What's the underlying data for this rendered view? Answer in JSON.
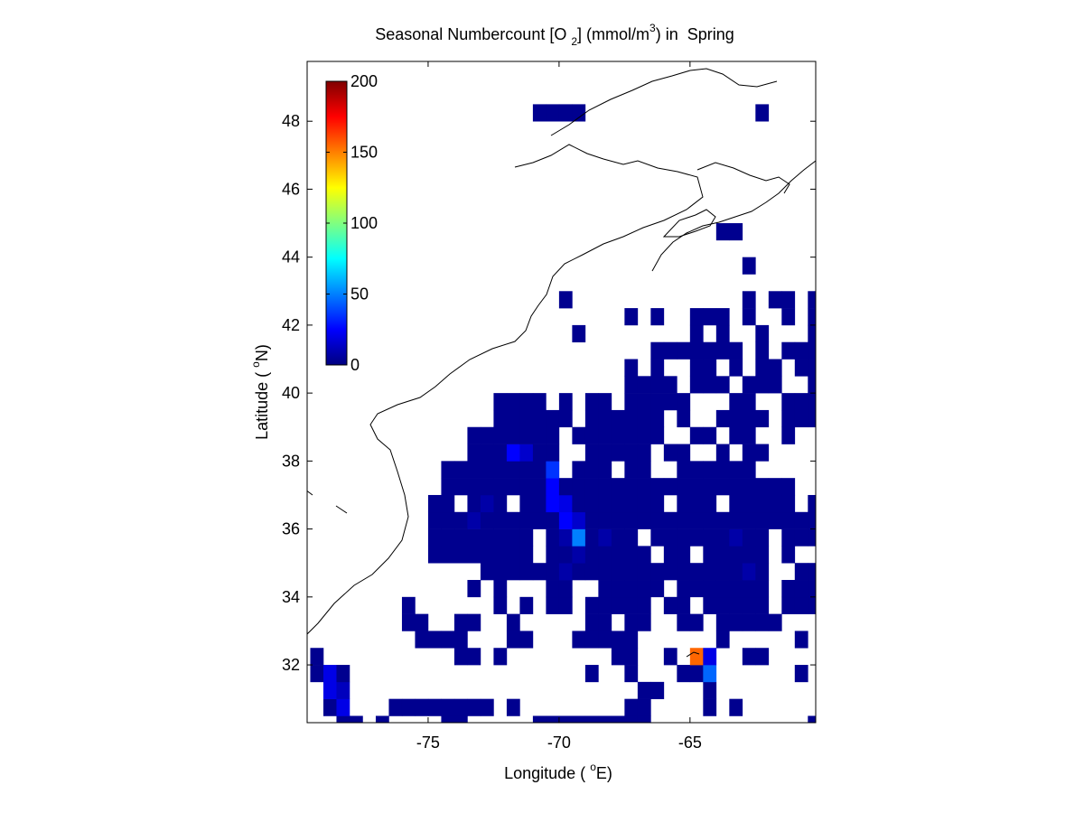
{
  "chart_data": {
    "type": "heatmap",
    "title_parts": [
      "Seasonal Numbercount [O ",
      "2",
      "] (mmol/m",
      "3",
      ") in  Spring"
    ],
    "xlabel_parts": [
      "Longitude ( ",
      "o",
      "E)"
    ],
    "ylabel_parts": [
      "Latitude ( ",
      "o",
      "N)"
    ],
    "xlim": [
      -79.62,
      -60.2
    ],
    "ylim": [
      30.3,
      49.76
    ],
    "xticks": [
      -75,
      -70,
      -65
    ],
    "yticks": [
      32,
      34,
      36,
      38,
      40,
      42,
      44,
      46,
      48
    ],
    "clim": [
      0,
      200
    ],
    "cticks": [
      0,
      50,
      100,
      150,
      200
    ],
    "colormap": "jet",
    "cell_size": 0.5,
    "rows": [
      {
        "lat": 30.25,
        "lon": [
          -78.25,
          -77.75,
          -76.75,
          -74.25,
          -73.75,
          -70.75,
          -70.25,
          -69.75,
          -69.25,
          -68.75,
          -68.25,
          -67.75,
          -67.25,
          -66.75,
          -60.25
        ],
        "values": [
          3,
          3,
          3,
          3,
          3,
          3,
          3,
          3,
          3,
          3,
          3,
          3,
          3,
          3,
          3
        ]
      },
      {
        "lat": 30.75,
        "lon": [
          -78.75,
          -78.25,
          -76.25,
          -75.75,
          -75.25,
          -74.75,
          -74.25,
          -73.75,
          -73.25,
          -72.75,
          -71.75,
          -67.25,
          -66.75,
          -64.25,
          -63.25
        ],
        "values": [
          3,
          20,
          3,
          3,
          3,
          3,
          3,
          3,
          3,
          3,
          3,
          3,
          3,
          3,
          3
        ]
      },
      {
        "lat": 31.25,
        "lon": [
          -78.75,
          -78.25,
          -66.75,
          -66.25,
          -64.25
        ],
        "values": [
          20,
          12,
          3,
          3,
          3
        ]
      },
      {
        "lat": 31.75,
        "lon": [
          -79.25,
          -78.75,
          -78.25,
          -68.75,
          -67.25,
          -65.25,
          -64.75,
          -64.25,
          -60.75
        ],
        "values": [
          3,
          20,
          3,
          3,
          3,
          3,
          3,
          45,
          3
        ]
      },
      {
        "lat": 32.25,
        "lon": [
          -79.25,
          -73.75,
          -73.25,
          -72.25,
          -67.75,
          -67.25,
          -65.75,
          -64.75,
          -64.25,
          -62.75,
          -62.25
        ],
        "values": [
          3,
          3,
          3,
          3,
          3,
          3,
          3,
          155,
          20,
          3,
          3
        ]
      },
      {
        "lat": 32.75,
        "lon": [
          -75.25,
          -74.75,
          -74.25,
          -73.75,
          -71.75,
          -71.25,
          -69.25,
          -68.75,
          -68.25,
          -67.75,
          -67.25,
          -63.75,
          -60.75
        ],
        "values": [
          3,
          3,
          3,
          3,
          3,
          3,
          3,
          3,
          3,
          3,
          3,
          3,
          3
        ]
      },
      {
        "lat": 33.25,
        "lon": [
          -75.75,
          -75.25,
          -73.75,
          -73.25,
          -71.75,
          -68.75,
          -68.25,
          -67.25,
          -66.75,
          -65.25,
          -64.75,
          -63.75,
          -63.25,
          -62.75,
          -62.25,
          -61.75
        ],
        "values": [
          3,
          3,
          3,
          3,
          3,
          3,
          3,
          3,
          3,
          3,
          3,
          3,
          3,
          3,
          3,
          3
        ]
      },
      {
        "lat": 33.75,
        "lon": [
          -75.75,
          -72.25,
          -71.25,
          -70.25,
          -69.75,
          -68.75,
          -68.25,
          -67.75,
          -67.25,
          -66.75,
          -65.75,
          -65.25,
          -64.25,
          -63.75,
          -63.25,
          -62.75,
          -62.25,
          -61.25,
          -60.75,
          -60.25
        ],
        "values": [
          3,
          3,
          3,
          3,
          3,
          3,
          3,
          3,
          3,
          3,
          3,
          3,
          3,
          3,
          3,
          3,
          3,
          3,
          3,
          3
        ]
      },
      {
        "lat": 34.25,
        "lon": [
          -73.25,
          -72.25,
          -70.25,
          -69.75,
          -68.25,
          -67.75,
          -67.25,
          -66.75,
          -66.25,
          -65.25,
          -64.75,
          -64.25,
          -63.75,
          -63.25,
          -62.75,
          -62.25,
          -61.25,
          -60.75,
          -60.25
        ],
        "values": [
          3,
          3,
          3,
          3,
          3,
          3,
          3,
          3,
          3,
          3,
          3,
          3,
          3,
          3,
          3,
          3,
          3,
          3,
          3
        ]
      },
      {
        "lat": 34.75,
        "lon": [
          -72.75,
          -72.25,
          -71.75,
          -71.25,
          -70.75,
          -70.25,
          -69.75,
          -69.25,
          -68.75,
          -68.25,
          -67.75,
          -67.25,
          -66.75,
          -66.25,
          -65.75,
          -65.25,
          -64.75,
          -64.25,
          -63.75,
          -63.25,
          -62.75,
          -62.25,
          -60.75,
          -60.25
        ],
        "values": [
          3,
          3,
          3,
          3,
          3,
          3,
          8,
          3,
          3,
          3,
          3,
          3,
          3,
          3,
          3,
          3,
          3,
          3,
          3,
          3,
          8,
          3,
          3,
          3
        ]
      },
      {
        "lat": 35.25,
        "lon": [
          -74.75,
          -74.25,
          -73.75,
          -73.25,
          -72.75,
          -72.25,
          -71.75,
          -71.25,
          -70.25,
          -69.75,
          -69.25,
          -68.75,
          -68.25,
          -67.75,
          -67.25,
          -66.75,
          -65.75,
          -65.25,
          -64.25,
          -63.75,
          -63.25,
          -62.75,
          -62.25,
          -61.25
        ],
        "values": [
          3,
          3,
          3,
          3,
          3,
          3,
          3,
          3,
          3,
          3,
          8,
          3,
          3,
          3,
          3,
          3,
          3,
          3,
          3,
          3,
          3,
          3,
          3,
          3
        ]
      },
      {
        "lat": 35.75,
        "lon": [
          -74.75,
          -74.25,
          -73.75,
          -73.25,
          -72.75,
          -72.25,
          -71.75,
          -71.25,
          -70.25,
          -69.75,
          -69.25,
          -68.75,
          -68.25,
          -67.75,
          -67.25,
          -66.25,
          -65.75,
          -65.25,
          -64.75,
          -64.25,
          -63.75,
          -63.25,
          -62.75,
          -62.25,
          -61.25,
          -60.75,
          -60.25
        ],
        "values": [
          3,
          3,
          3,
          3,
          3,
          3,
          3,
          3,
          3,
          8,
          50,
          3,
          8,
          3,
          3,
          3,
          3,
          3,
          3,
          3,
          3,
          8,
          3,
          3,
          3,
          3,
          3
        ]
      },
      {
        "lat": 36.25,
        "lon": [
          -74.75,
          -74.25,
          -73.75,
          -73.25,
          -72.75,
          -72.25,
          -71.75,
          -71.25,
          -70.75,
          -70.25,
          -69.75,
          -69.25,
          -68.75,
          -68.25,
          -67.75,
          -67.25,
          -66.75,
          -66.25,
          -65.75,
          -65.25,
          -64.75,
          -64.25,
          -63.75,
          -63.25,
          -62.75,
          -62.25,
          -61.75,
          -61.25,
          -60.75,
          -60.25
        ],
        "values": [
          3,
          3,
          3,
          8,
          3,
          3,
          3,
          3,
          3,
          3,
          25,
          15,
          3,
          3,
          3,
          3,
          3,
          3,
          3,
          3,
          3,
          3,
          3,
          3,
          3,
          3,
          3,
          3,
          3,
          3
        ]
      },
      {
        "lat": 36.75,
        "lon": [
          -74.75,
          -74.25,
          -73.25,
          -72.75,
          -72.25,
          -71.25,
          -70.75,
          -70.25,
          -69.75,
          -69.25,
          -68.75,
          -68.25,
          -67.75,
          -67.25,
          -66.75,
          -66.25,
          -65.25,
          -64.75,
          -64.25,
          -63.25,
          -62.75,
          -62.25,
          -61.75,
          -61.25,
          -60.25
        ],
        "values": [
          3,
          3,
          3,
          8,
          3,
          3,
          3,
          25,
          20,
          3,
          3,
          3,
          3,
          3,
          3,
          3,
          3,
          3,
          3,
          3,
          3,
          3,
          3,
          3,
          3
        ]
      },
      {
        "lat": 37.25,
        "lon": [
          -74.25,
          -73.75,
          -73.25,
          -72.75,
          -72.25,
          -71.75,
          -71.25,
          -70.75,
          -70.25,
          -69.75,
          -69.25,
          -68.75,
          -68.25,
          -67.75,
          -67.25,
          -66.75,
          -66.25,
          -65.75,
          -65.25,
          -64.75,
          -64.25,
          -63.75,
          -63.25,
          -62.75,
          -62.25,
          -61.75,
          -61.25
        ],
        "values": [
          3,
          3,
          3,
          3,
          3,
          3,
          3,
          3,
          25,
          3,
          3,
          3,
          3,
          3,
          3,
          3,
          3,
          3,
          3,
          3,
          3,
          3,
          3,
          3,
          3,
          3,
          3
        ]
      },
      {
        "lat": 37.75,
        "lon": [
          -74.25,
          -73.75,
          -73.25,
          -72.75,
          -72.25,
          -71.75,
          -71.25,
          -70.75,
          -70.25,
          -69.25,
          -68.75,
          -68.25,
          -67.25,
          -66.75,
          -65.25,
          -64.75,
          -64.25,
          -63.75,
          -63.25,
          -62.75
        ],
        "values": [
          3,
          3,
          3,
          3,
          3,
          3,
          3,
          3,
          35,
          3,
          3,
          3,
          3,
          3,
          3,
          3,
          3,
          3,
          3,
          3
        ]
      },
      {
        "lat": 38.25,
        "lon": [
          -73.25,
          -72.75,
          -72.25,
          -71.75,
          -71.25,
          -70.75,
          -70.25,
          -68.75,
          -68.25,
          -67.75,
          -67.25,
          -66.75,
          -65.75,
          -65.25,
          -63.75,
          -62.75,
          -62.25
        ],
        "values": [
          3,
          3,
          3,
          25,
          15,
          3,
          3,
          3,
          3,
          3,
          3,
          3,
          3,
          3,
          3,
          3,
          3
        ]
      },
      {
        "lat": 38.75,
        "lon": [
          -73.25,
          -72.75,
          -72.25,
          -71.75,
          -71.25,
          -70.75,
          -70.25,
          -69.25,
          -68.75,
          -68.25,
          -67.75,
          -67.25,
          -66.75,
          -66.25,
          -64.75,
          -64.25,
          -63.25,
          -62.75,
          -61.25
        ],
        "values": [
          3,
          3,
          3,
          3,
          3,
          3,
          3,
          3,
          3,
          3,
          3,
          3,
          3,
          3,
          3,
          3,
          3,
          3,
          3
        ]
      },
      {
        "lat": 39.25,
        "lon": [
          -72.25,
          -71.75,
          -71.25,
          -70.75,
          -70.25,
          -69.75,
          -68.75,
          -68.25,
          -67.75,
          -67.25,
          -66.75,
          -66.25,
          -65.25,
          -63.75,
          -63.25,
          -62.75,
          -62.25,
          -61.25,
          -60.75,
          -60.25
        ],
        "values": [
          3,
          3,
          3,
          3,
          3,
          3,
          3,
          3,
          3,
          3,
          3,
          3,
          3,
          3,
          3,
          3,
          3,
          3,
          3,
          3
        ]
      },
      {
        "lat": 39.75,
        "lon": [
          -72.25,
          -71.75,
          -71.25,
          -70.75,
          -69.75,
          -68.75,
          -68.25,
          -67.25,
          -66.75,
          -66.25,
          -65.75,
          -65.25,
          -63.25,
          -62.75,
          -61.25,
          -60.75,
          -60.25
        ],
        "values": [
          3,
          3,
          3,
          3,
          3,
          3,
          3,
          3,
          3,
          3,
          3,
          3,
          3,
          3,
          3,
          3,
          3
        ]
      },
      {
        "lat": 40.25,
        "lon": [
          -67.25,
          -66.75,
          -66.25,
          -65.75,
          -64.75,
          -64.25,
          -63.75,
          -62.75,
          -62.25,
          -61.75,
          -60.25
        ],
        "values": [
          3,
          3,
          3,
          3,
          3,
          3,
          3,
          3,
          3,
          3,
          3
        ]
      },
      {
        "lat": 40.75,
        "lon": [
          -67.25,
          -66.25,
          -64.75,
          -64.25,
          -63.25,
          -62.25,
          -61.75,
          -60.75,
          -60.25
        ],
        "values": [
          3,
          3,
          3,
          3,
          3,
          3,
          3,
          3,
          3
        ]
      },
      {
        "lat": 41.25,
        "lon": [
          -66.25,
          -65.75,
          -65.25,
          -64.75,
          -64.25,
          -63.75,
          -63.25,
          -62.25,
          -61.25,
          -60.75,
          -60.25
        ],
        "values": [
          3,
          3,
          3,
          3,
          3,
          3,
          3,
          3,
          3,
          3,
          3
        ]
      },
      {
        "lat": 41.75,
        "lon": [
          -69.25,
          -64.75,
          -63.75,
          -62.25,
          -60.25
        ],
        "values": [
          3,
          3,
          3,
          3,
          3
        ]
      },
      {
        "lat": 42.25,
        "lon": [
          -67.25,
          -66.25,
          -64.75,
          -64.25,
          -63.75,
          -62.75,
          -61.25,
          -60.25
        ],
        "values": [
          3,
          3,
          3,
          3,
          3,
          3,
          3,
          3
        ]
      },
      {
        "lat": 42.75,
        "lon": [
          -69.75,
          -62.75,
          -61.75,
          -61.25,
          -60.25
        ],
        "values": [
          3,
          3,
          3,
          3,
          3
        ]
      },
      {
        "lat": 43.75,
        "lon": [
          -62.75
        ],
        "values": [
          3
        ]
      },
      {
        "lat": 44.75,
        "lon": [
          -63.75,
          -63.25
        ],
        "values": [
          3,
          3
        ]
      },
      {
        "lat": 48.25,
        "lon": [
          -70.75,
          -70.25,
          -69.75,
          -69.25,
          -62.25
        ],
        "values": [
          3,
          3,
          3,
          3,
          3
        ]
      }
    ]
  }
}
